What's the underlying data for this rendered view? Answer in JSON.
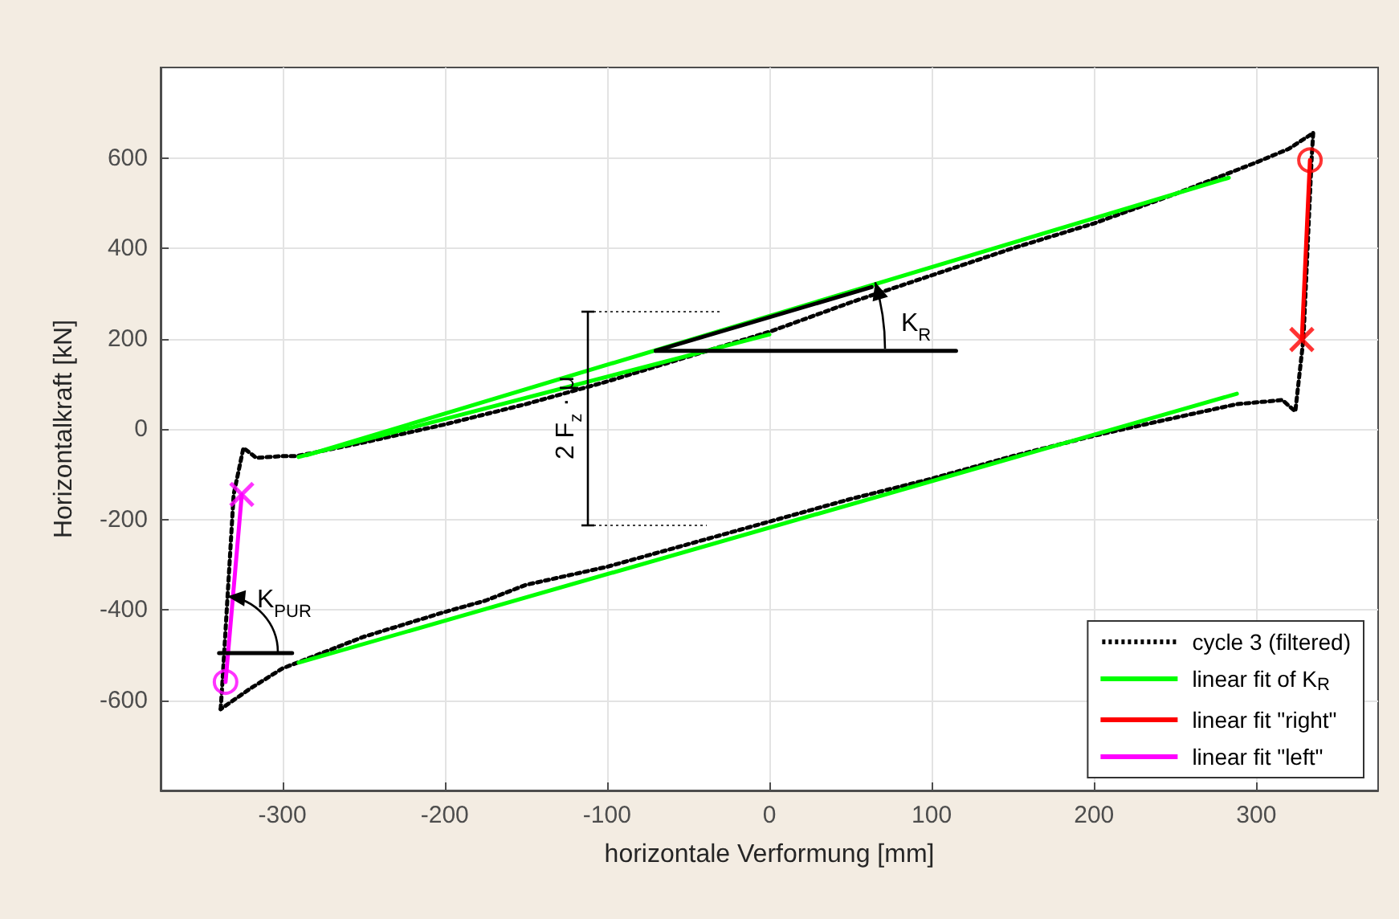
{
  "chart_data": {
    "type": "line",
    "xlabel": "horizontale Verformung [mm]",
    "ylabel": "Horizontalkraft [kN]",
    "xlim": [
      -375,
      375
    ],
    "xticks": [
      -300,
      -200,
      -100,
      0,
      100,
      200,
      300
    ],
    "ylim": [
      -800,
      800
    ],
    "yticks": [
      -600,
      -400,
      -200,
      0,
      200,
      400,
      600
    ],
    "grid": true,
    "legend": "bottom right",
    "marker": "none",
    "series": [
      {
        "name": "cycle 3 (filtered)",
        "color": "#000000",
        "line_style": "dotted",
        "x": [
          -338,
          -337,
          -330,
          -324,
          -316,
          -300,
          -291,
          -250,
          -200,
          -150,
          -100,
          -50,
          0,
          50,
          100,
          150,
          200,
          250,
          300,
          320,
          335
        ],
        "values": [
          -620,
          -565,
          -145,
          -42,
          -64,
          -60,
          -60,
          -30,
          10,
          55,
          105,
          160,
          215,
          280,
          340,
          400,
          455,
          520,
          590,
          620,
          655
        ]
      },
      {
        "color": "#000000",
        "line_style": "dotted",
        "x": [
          335,
          334,
          329,
          324,
          316,
          288,
          250,
          200,
          150,
          100,
          50,
          0,
          -50,
          -100,
          -150,
          -175,
          -200,
          -250,
          -300,
          -320,
          -338
        ],
        "values": [
          655,
          595,
          200,
          39,
          64,
          55,
          25,
          -15,
          -60,
          -110,
          -155,
          -205,
          -255,
          -305,
          -345,
          -380,
          -405,
          -460,
          -530,
          -575,
          -620
        ]
      },
      {
        "name": "linear fit of K$_{R}$",
        "color": "#00ff00",
        "x": [
          -285,
          283
        ],
        "values": [
          -58,
          556
        ]
      },
      {
        "color": "#00ff00",
        "x": [
          -290,
          0
        ],
        "values": [
          -62,
          209
        ]
      },
      {
        "color": "#00ff00",
        "x": [
          -290,
          288
        ],
        "values": [
          -517,
          78
        ]
      },
      {
        "name": "linear fit \"right\"",
        "color": "#ff0000",
        "x": [
          333,
          328
        ],
        "values": [
          595,
          198
        ]
      },
      {
        "name": "linear fit \"left\"",
        "color": "#ff00ff",
        "x": [
          -335,
          -325
        ],
        "values": [
          -560,
          -145
        ]
      },
      {
        "color": "#000000",
        "x": [
          -70,
          63
        ],
        "values": [
          173,
          314
        ]
      },
      {
        "color": "#000000",
        "x": [
          -70,
          115
        ],
        "values": [
          173,
          173
        ]
      },
      {
        "color": "#000000",
        "x": [
          -339,
          -294
        ],
        "values": [
          -496,
          -496
        ]
      },
      {
        "type": "scatter",
        "marker": "circle",
        "color": "#ff0000",
        "x": [
          333
        ],
        "values": [
          595
        ]
      },
      {
        "type": "scatter",
        "marker": "cross",
        "color": "#ff0000",
        "x": [
          328
        ],
        "values": [
          198
        ]
      },
      {
        "type": "scatter",
        "marker": "circle",
        "color": "#ff00ff",
        "x": [
          -335
        ],
        "values": [
          -560
        ]
      },
      {
        "type": "scatter",
        "marker": "cross",
        "color": "#ff00ff",
        "x": [
          -325
        ],
        "values": [
          -145
        ]
      }
    ],
    "annotations": [
      "K$_{R}$",
      "K$_{PUR}$",
      "2 F$_{z}$ · μ"
    ]
  }
}
